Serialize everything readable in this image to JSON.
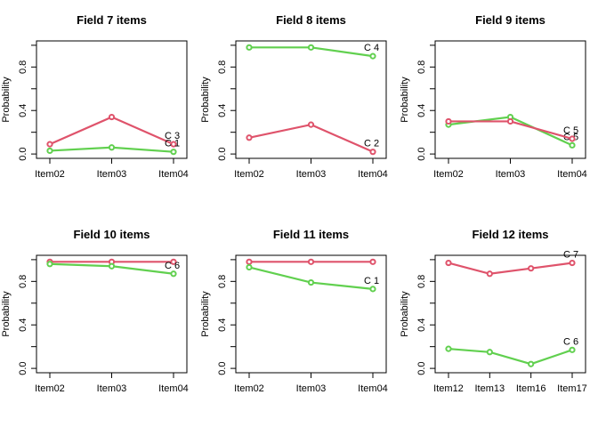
{
  "chart_data": [
    {
      "type": "line",
      "title": "Field 7 items",
      "ylabel": "Probability",
      "ylim": [
        0,
        1
      ],
      "yticks": [
        "0.0",
        "0.4",
        "0.8"
      ],
      "categories": [
        "Item02",
        "Item03",
        "Item04"
      ],
      "series": [
        {
          "color": "#DF536B",
          "values": [
            0.09,
            0.34,
            0.09
          ],
          "end_label": "C 3"
        },
        {
          "color": "#61D04F",
          "values": [
            0.03,
            0.06,
            0.02
          ],
          "end_label": "C 1"
        }
      ]
    },
    {
      "type": "line",
      "title": "Field 8 items",
      "ylabel": "Probability",
      "ylim": [
        0,
        1
      ],
      "yticks": [
        "0.0",
        "0.4",
        "0.8"
      ],
      "categories": [
        "Item02",
        "Item03",
        "Item04"
      ],
      "series": [
        {
          "color": "#61D04F",
          "values": [
            0.98,
            0.98,
            0.9
          ],
          "end_label": "C 4"
        },
        {
          "color": "#DF536B",
          "values": [
            0.15,
            0.27,
            0.02
          ],
          "end_label": "C 2"
        }
      ]
    },
    {
      "type": "line",
      "title": "Field 9 items",
      "ylabel": "Probability",
      "ylim": [
        0,
        1
      ],
      "yticks": [
        "0.0",
        "0.4",
        "0.8"
      ],
      "categories": [
        "Item02",
        "Item03",
        "Item04"
      ],
      "series": [
        {
          "color": "#61D04F",
          "values": [
            0.27,
            0.34,
            0.08
          ],
          "end_label": "C 5"
        },
        {
          "color": "#DF536B",
          "values": [
            0.3,
            0.3,
            0.14
          ],
          "end_label": "C 5"
        }
      ]
    },
    {
      "type": "line",
      "title": "Field 10 items",
      "ylabel": "Probability",
      "ylim": [
        0,
        1
      ],
      "yticks": [
        "0.0",
        "0.4",
        "0.8"
      ],
      "categories": [
        "Item02",
        "Item03",
        "Item04"
      ],
      "series": [
        {
          "color": "#DF536B",
          "values": [
            0.98,
            0.98,
            0.98
          ],
          "end_label": ""
        },
        {
          "color": "#61D04F",
          "values": [
            0.96,
            0.94,
            0.87
          ],
          "end_label": "C 6"
        }
      ]
    },
    {
      "type": "line",
      "title": "Field 11 items",
      "ylabel": "Probability",
      "ylim": [
        0,
        1
      ],
      "yticks": [
        "0.0",
        "0.4",
        "0.8"
      ],
      "categories": [
        "Item02",
        "Item03",
        "Item04"
      ],
      "series": [
        {
          "color": "#DF536B",
          "values": [
            0.98,
            0.98,
            0.98
          ],
          "end_label": ""
        },
        {
          "color": "#61D04F",
          "values": [
            0.93,
            0.79,
            0.73
          ],
          "end_label": "C 1"
        }
      ]
    },
    {
      "type": "line",
      "title": "Field 12 items",
      "ylabel": "Probability",
      "ylim": [
        0,
        1
      ],
      "yticks": [
        "0.0",
        "0.4",
        "0.8"
      ],
      "categories": [
        "Item12",
        "Item13",
        "Item16",
        "Item17"
      ],
      "series": [
        {
          "color": "#DF536B",
          "values": [
            0.97,
            0.87,
            0.92,
            0.97
          ],
          "end_label": "C 7"
        },
        {
          "color": "#61D04F",
          "values": [
            0.18,
            0.15,
            0.04,
            0.17
          ],
          "end_label": "C 6"
        }
      ]
    }
  ]
}
